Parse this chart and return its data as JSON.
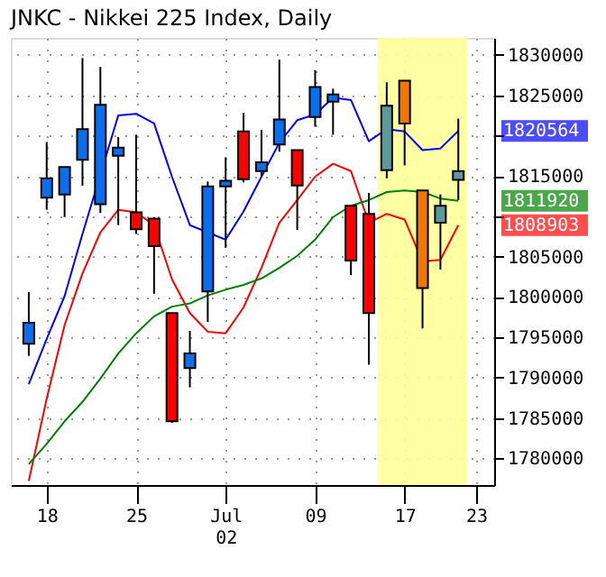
{
  "chart_data": {
    "type": "candlestick",
    "title": "JNKC - Nikkei 225 Index, Daily",
    "categories": [
      null,
      "18",
      null,
      null,
      null,
      null,
      "25",
      null,
      null,
      null,
      null,
      "Jul\n02",
      null,
      null,
      null,
      null,
      "09",
      null,
      null,
      null,
      null,
      "17",
      null,
      null,
      null,
      "23"
    ],
    "ohlc": [
      [
        1794200,
        1800600,
        1792700,
        1796800
      ],
      [
        1812300,
        1819200,
        1810800,
        1814700
      ],
      [
        1812700,
        1816100,
        1809900,
        1816100
      ],
      [
        1817000,
        1829600,
        1813800,
        1820800
      ],
      [
        1811500,
        1828500,
        1810400,
        1823800
      ],
      [
        1817500,
        1819800,
        1808900,
        1818500
      ],
      [
        1810500,
        1820100,
        1807800,
        1808400
      ],
      [
        1809700,
        1809900,
        1800400,
        1806300
      ],
      [
        1798000,
        1798000,
        1784400,
        1784600
      ],
      [
        1791200,
        1795800,
        1788800,
        1793000
      ],
      [
        1800700,
        1814300,
        1796900,
        1813700
      ],
      [
        1813700,
        1817300,
        1806100,
        1814400
      ],
      [
        1820500,
        1822800,
        1814200,
        1814600
      ],
      [
        1815600,
        1820700,
        1815000,
        1816700
      ],
      [
        1818900,
        1829400,
        1818000,
        1822000
      ],
      [
        1818200,
        1818200,
        1808300,
        1813800
      ],
      [
        1822300,
        1828100,
        1821100,
        1826000
      ],
      [
        1824200,
        1825800,
        1820100,
        1825100
      ],
      [
        1811300,
        1811300,
        1802700,
        1804500
      ],
      [
        1810300,
        1812900,
        1791600,
        1798000
      ],
      [
        1815700,
        1826600,
        1814700,
        1823700
      ],
      [
        1826800,
        1826800,
        1816300,
        1821500
      ],
      [
        1813200,
        1813200,
        1796100,
        1801100
      ],
      [
        1809200,
        1812700,
        1803400,
        1811300
      ],
      [
        1814500,
        1822100,
        1812000,
        1815600
      ],
      null
    ],
    "colors": [
      "#0a6ef0",
      "#0a6ef0",
      "#0a6ef0",
      "#0a6ef0",
      "#0a6ef0",
      "#0a6ef0",
      "#ff0000",
      "#ff0000",
      "#ff0000",
      "#0a6ef0",
      "#0a6ef0",
      "#0a6ef0",
      "#ff0000",
      "#0a6ef0",
      "#0a6ef0",
      "#ff0000",
      "#0a6ef0",
      "#0a6ef0",
      "#ff0000",
      "#ff0000",
      "#5a9a9a",
      "#f07800",
      "#f07800",
      "#5a9a9a",
      "#5a9a9a",
      null
    ],
    "series": [
      {
        "type": "line",
        "color": "#0000ff",
        "values": [
          1789200,
          1794800,
          1800100,
          1807800,
          null,
          1822500,
          1822700,
          1821500,
          1814900,
          1808900,
          1808000,
          1807100,
          1810600,
          1814900,
          1819100,
          1821900,
          1822600,
          1824700,
          1824400,
          1819300,
          1820800,
          1820500,
          1818200,
          1818400,
          1820564,
          null
        ]
      },
      {
        "type": "line",
        "color": "#ff0000",
        "values": [
          1777200,
          1787400,
          1796500,
          1802900,
          1808000,
          1810800,
          1810500,
          1808900,
          1802200,
          1798000,
          1795700,
          1795500,
          1798700,
          1803600,
          1809200,
          1812000,
          1814900,
          1816500,
          1815600,
          1809200,
          1810300,
          1809600,
          1804400,
          1804600,
          1808903,
          null
        ]
      },
      {
        "type": "line",
        "color": "#008000",
        "values": [
          1779300,
          1781800,
          1784600,
          1787000,
          1789900,
          1793000,
          1795500,
          1797600,
          1798800,
          1799200,
          1800200,
          1800900,
          1801500,
          1802300,
          1803600,
          1805100,
          1807100,
          1809900,
          1811300,
          1812000,
          1813000,
          1813200,
          1813000,
          1812200,
          1811920,
          null
        ]
      }
    ],
    "ylim": [
      1776700,
      1832100
    ],
    "yticks": [
      1780000,
      1785000,
      1790000,
      1795000,
      1800000,
      1805000,
      {
        "value": 1810000,
        "label": null
      },
      1815000,
      {
        "value": 1820000,
        "label": null
      },
      1825000,
      1830000
    ],
    "grid": true,
    "annotations": [
      "1820564",
      "1808903",
      "1811920"
    ]
  }
}
